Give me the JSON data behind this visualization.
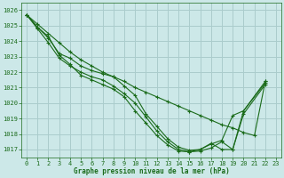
{
  "background_color": "#cce8e8",
  "grid_color": "#aacccc",
  "line_color": "#1a6b1a",
  "xlabel": "Graphe pression niveau de la mer (hPa)",
  "ylim": [
    1016.5,
    1026.5
  ],
  "xlim": [
    -0.5,
    23.5
  ],
  "yticks": [
    1017,
    1018,
    1019,
    1020,
    1021,
    1022,
    1023,
    1024,
    1025,
    1026
  ],
  "xticks": [
    0,
    1,
    2,
    3,
    4,
    5,
    6,
    7,
    8,
    9,
    10,
    11,
    12,
    13,
    14,
    15,
    16,
    17,
    18,
    19,
    20,
    21,
    22,
    23
  ],
  "series": [
    [
      1025.7,
      1025.1,
      1024.5,
      1023.9,
      1023.3,
      1022.8,
      1022.4,
      1022.0,
      1021.7,
      1021.4,
      1021.0,
      1020.7,
      1020.4,
      1020.1,
      1019.8,
      1019.5,
      1019.2,
      1018.9,
      1018.6,
      1018.4,
      1018.1,
      1017.9,
      1021.4
    ],
    [
      1025.7,
      1024.9,
      1024.3,
      1023.1,
      1022.5,
      1021.8,
      1021.5,
      1021.2,
      1020.9,
      1020.4,
      1019.5,
      1018.7,
      1017.9,
      1017.3,
      1016.9,
      1016.85,
      1017.0,
      1017.35,
      1017.6,
      1019.2,
      1019.5,
      1021.3
    ],
    [
      1025.7,
      1024.9,
      1024.2,
      1023.2,
      1022.9,
      1022.4,
      1022.1,
      1021.9,
      1021.7,
      1021.1,
      1020.5,
      1019.3,
      1018.5,
      1017.7,
      1017.15,
      1016.95,
      1017.0,
      1017.4,
      1017.0,
      1017.0,
      1019.5,
      1021.4
    ],
    [
      1025.7,
      1024.8,
      1023.9,
      1022.9,
      1022.4,
      1022.0,
      1021.7,
      1021.5,
      1021.1,
      1020.6,
      1020.0,
      1019.1,
      1018.2,
      1017.5,
      1017.0,
      1016.85,
      1016.9,
      1017.1,
      1017.5,
      1017.0,
      1019.3,
      1021.2
    ]
  ],
  "series_x": [
    [
      0,
      1,
      2,
      3,
      4,
      5,
      6,
      7,
      8,
      9,
      10,
      11,
      12,
      13,
      14,
      15,
      16,
      17,
      18,
      19,
      20,
      21,
      22
    ],
    [
      0,
      1,
      2,
      3,
      4,
      5,
      6,
      7,
      8,
      9,
      10,
      11,
      12,
      13,
      14,
      15,
      16,
      17,
      18,
      19,
      20,
      22
    ],
    [
      0,
      1,
      2,
      3,
      4,
      5,
      6,
      7,
      8,
      9,
      10,
      11,
      12,
      13,
      14,
      15,
      16,
      17,
      18,
      19,
      20,
      22
    ],
    [
      0,
      1,
      2,
      3,
      4,
      5,
      6,
      7,
      8,
      9,
      10,
      11,
      12,
      13,
      14,
      15,
      16,
      17,
      18,
      19,
      20,
      22
    ]
  ]
}
